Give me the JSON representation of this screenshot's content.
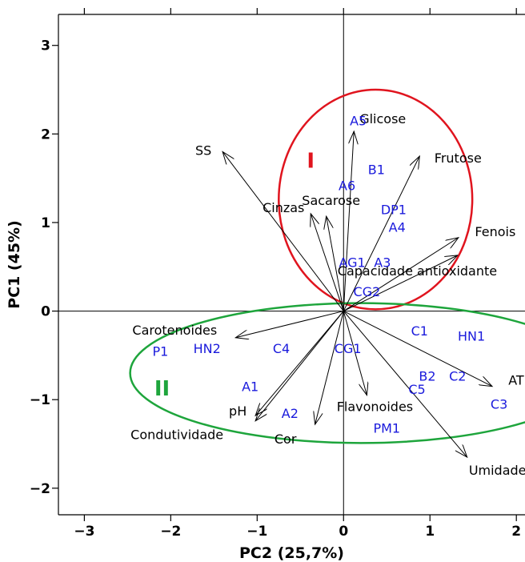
{
  "chart_data": {
    "type": "scatter",
    "subtype": "pca-biplot",
    "title": "",
    "xlabel": "PC2 (25,7%)",
    "ylabel": "PC1 (45%)",
    "xlim": [
      -3.3,
      2.1
    ],
    "ylim": [
      -2.3,
      3.35
    ],
    "xticks": [
      -3,
      -2,
      -1,
      0,
      1,
      2
    ],
    "yticks": [
      -2,
      -1,
      0,
      1,
      2,
      3
    ],
    "xtick_labels": [
      "−3",
      "−2",
      "−1",
      "0",
      "1",
      "2"
    ],
    "ytick_labels": [
      "−2",
      "−1",
      "0",
      "1",
      "2",
      "3"
    ],
    "grid": false,
    "reference_lines": "x=0 and y=0",
    "colors": {
      "variables": "#000000",
      "observations": "#1a1adc",
      "group_I": "#e0141e",
      "group_II": "#1ea53c"
    },
    "variables": [
      {
        "label": "SS",
        "x": -1.4,
        "y": 1.8
      },
      {
        "label": "Glicose",
        "x": 0.12,
        "y": 2.03
      },
      {
        "label": "Frutose",
        "x": 0.88,
        "y": 1.75
      },
      {
        "label": "Sacarose",
        "x": -0.2,
        "y": 1.07
      },
      {
        "label": "Cinzas",
        "x": -0.38,
        "y": 1.1
      },
      {
        "label": "Fenois",
        "x": 1.33,
        "y": 0.83
      },
      {
        "label": "Capacidade antioxidante",
        "x": 1.32,
        "y": 0.63
      },
      {
        "label": "Carotenoides",
        "x": -1.25,
        "y": -0.3
      },
      {
        "label": "Flavonoides",
        "x": 0.27,
        "y": -0.95
      },
      {
        "label": "AT",
        "x": 1.72,
        "y": -0.85
      },
      {
        "label": "Umidade",
        "x": 1.43,
        "y": -1.65
      },
      {
        "label": "pH",
        "x": -1.02,
        "y": -1.18
      },
      {
        "label": "Condutividade",
        "x": -1.02,
        "y": -1.24
      },
      {
        "label": "Cor",
        "x": -0.33,
        "y": -1.28
      }
    ],
    "observations": [
      {
        "label": "A5",
        "x": 0.17,
        "y": 2.15
      },
      {
        "label": "B1",
        "x": 0.38,
        "y": 1.6
      },
      {
        "label": "A6",
        "x": 0.04,
        "y": 1.42
      },
      {
        "label": "DP1",
        "x": 0.58,
        "y": 1.15
      },
      {
        "label": "A4",
        "x": 0.62,
        "y": 0.95
      },
      {
        "label": "AG1",
        "x": 0.1,
        "y": 0.55
      },
      {
        "label": "A3",
        "x": 0.45,
        "y": 0.55
      },
      {
        "label": "CG2",
        "x": 0.27,
        "y": 0.22
      },
      {
        "label": "C1",
        "x": 0.88,
        "y": -0.22
      },
      {
        "label": "HN1",
        "x": 1.48,
        "y": -0.28
      },
      {
        "label": "P1",
        "x": -2.12,
        "y": -0.45
      },
      {
        "label": "HN2",
        "x": -1.58,
        "y": -0.42
      },
      {
        "label": "C4",
        "x": -0.72,
        "y": -0.42
      },
      {
        "label": "CG1",
        "x": 0.05,
        "y": -0.42
      },
      {
        "label": "B2",
        "x": 0.97,
        "y": -0.73
      },
      {
        "label": "C2",
        "x": 1.32,
        "y": -0.73
      },
      {
        "label": "C5",
        "x": 0.85,
        "y": -0.88
      },
      {
        "label": "C3",
        "x": 1.8,
        "y": -1.05
      },
      {
        "label": "A1",
        "x": -1.08,
        "y": -0.85
      },
      {
        "label": "A2",
        "x": -0.62,
        "y": -1.15
      },
      {
        "label": "PM1",
        "x": 0.5,
        "y": -1.32
      }
    ],
    "groups": [
      {
        "label": "I",
        "cx": 0.37,
        "cy": 1.26,
        "rx": 1.12,
        "ry": 1.24,
        "text_x": -0.38,
        "text_y": 1.7
      },
      {
        "label": "II",
        "cx": 0.2,
        "cy": -0.7,
        "rx": 2.67,
        "ry": 0.79,
        "text_x": -2.1,
        "text_y": -0.87
      }
    ]
  }
}
